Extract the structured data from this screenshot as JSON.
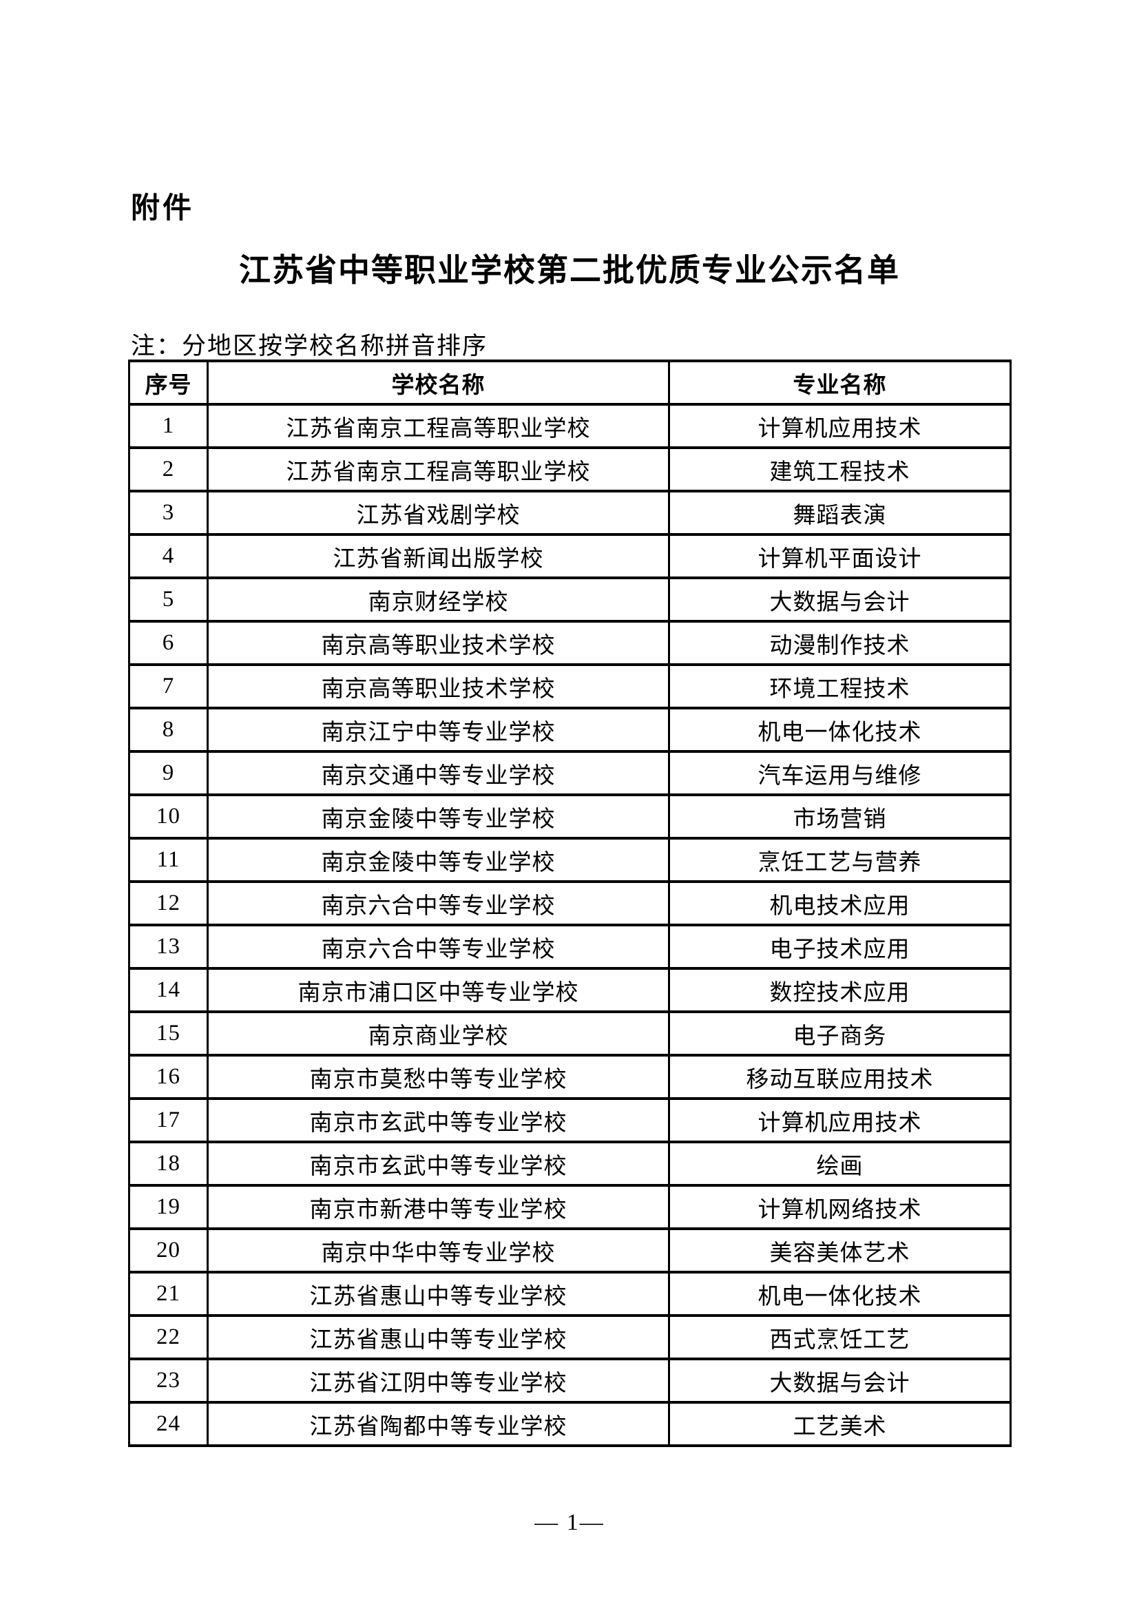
{
  "page": {
    "attachment_label": "附件",
    "title": "江苏省中等职业学校第二批优质专业公示名单",
    "note": "注：分地区按学校名称拼音排序",
    "page_number": "— 1—"
  },
  "table": {
    "headers": [
      "序号",
      "学校名称",
      "专业名称"
    ],
    "rows": [
      [
        "1",
        "江苏省南京工程高等职业学校",
        "计算机应用技术"
      ],
      [
        "2",
        "江苏省南京工程高等职业学校",
        "建筑工程技术"
      ],
      [
        "3",
        "江苏省戏剧学校",
        "舞蹈表演"
      ],
      [
        "4",
        "江苏省新闻出版学校",
        "计算机平面设计"
      ],
      [
        "5",
        "南京财经学校",
        "大数据与会计"
      ],
      [
        "6",
        "南京高等职业技术学校",
        "动漫制作技术"
      ],
      [
        "7",
        "南京高等职业技术学校",
        "环境工程技术"
      ],
      [
        "8",
        "南京江宁中等专业学校",
        "机电一体化技术"
      ],
      [
        "9",
        "南京交通中等专业学校",
        "汽车运用与维修"
      ],
      [
        "10",
        "南京金陵中等专业学校",
        "市场营销"
      ],
      [
        "11",
        "南京金陵中等专业学校",
        "烹饪工艺与营养"
      ],
      [
        "12",
        "南京六合中等专业学校",
        "机电技术应用"
      ],
      [
        "13",
        "南京六合中等专业学校",
        "电子技术应用"
      ],
      [
        "14",
        "南京市浦口区中等专业学校",
        "数控技术应用"
      ],
      [
        "15",
        "南京商业学校",
        "电子商务"
      ],
      [
        "16",
        "南京市莫愁中等专业学校",
        "移动互联应用技术"
      ],
      [
        "17",
        "南京市玄武中等专业学校",
        "计算机应用技术"
      ],
      [
        "18",
        "南京市玄武中等专业学校",
        "绘画"
      ],
      [
        "19",
        "南京市新港中等专业学校",
        "计算机网络技术"
      ],
      [
        "20",
        "南京中华中等专业学校",
        "美容美体艺术"
      ],
      [
        "21",
        "江苏省惠山中等专业学校",
        "机电一体化技术"
      ],
      [
        "22",
        "江苏省惠山中等专业学校",
        "西式烹饪工艺"
      ],
      [
        "23",
        "江苏省江阴中等专业学校",
        "大数据与会计"
      ],
      [
        "24",
        "江苏省陶都中等专业学校",
        "工艺美术"
      ]
    ]
  }
}
